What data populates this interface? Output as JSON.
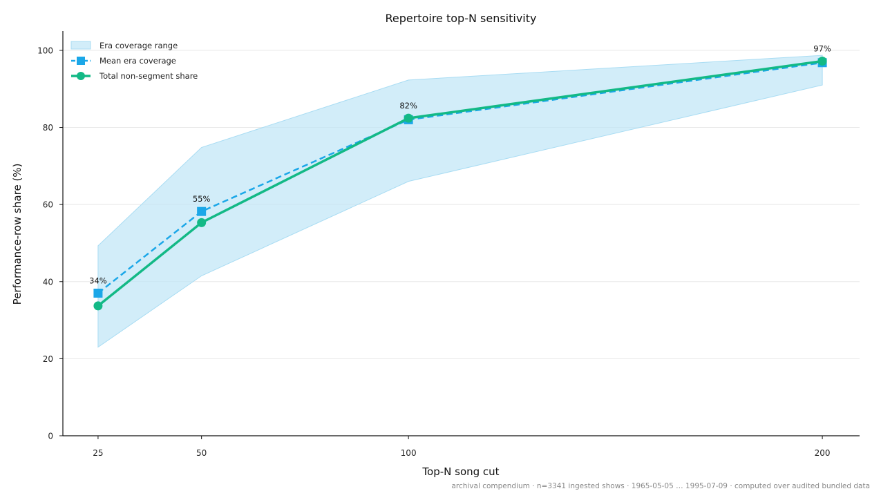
{
  "chart_data": {
    "type": "line",
    "title": "Repertoire top-N sensitivity",
    "xlabel": "Top-N song cut",
    "ylabel": "Performance-row share (%)",
    "x": [
      25,
      50,
      100,
      200
    ],
    "xlim": [
      16.5,
      209
    ],
    "ylim": [
      0,
      105
    ],
    "xticks": [
      25,
      50,
      100,
      200
    ],
    "yticks": [
      0,
      20,
      40,
      60,
      80,
      100
    ],
    "grid": "horizontal",
    "legend_position": "top-left",
    "band": {
      "name": "Era coverage range",
      "lower": [
        23,
        41.5,
        66,
        91
      ],
      "upper": [
        49.3,
        74.8,
        92.3,
        98.7
      ],
      "color": "#bfe5f6"
    },
    "series": [
      {
        "name": "Mean era coverage",
        "values": [
          37,
          58.2,
          82,
          96.8
        ],
        "color": "#1ba7e8",
        "marker": "square",
        "dash": "dashed"
      },
      {
        "name": "Total non-segment share",
        "values": [
          33.7,
          55.3,
          82.4,
          97.2
        ],
        "color": "#13b986",
        "marker": "circle",
        "dash": "solid"
      }
    ],
    "data_labels": [
      "34%",
      "55%",
      "82%",
      "97%"
    ],
    "footnote": "archival compendium · n=3341 ingested shows · 1965-05-05 … 1995-07-09 · computed over audited bundled data"
  }
}
